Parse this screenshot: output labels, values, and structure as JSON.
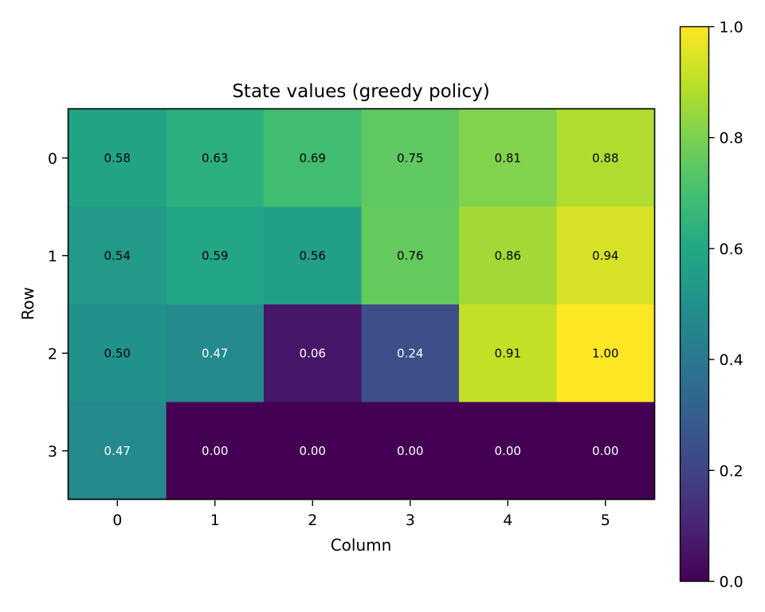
{
  "chart_data": {
    "type": "heatmap",
    "title": "State values (greedy policy)",
    "xlabel": "Column",
    "ylabel": "Row",
    "x_ticks": [
      "0",
      "1",
      "2",
      "3",
      "4",
      "5"
    ],
    "y_ticks": [
      "0",
      "1",
      "2",
      "3"
    ],
    "values": [
      [
        0.58,
        0.63,
        0.69,
        0.75,
        0.81,
        0.88
      ],
      [
        0.54,
        0.59,
        0.56,
        0.76,
        0.86,
        0.94
      ],
      [
        0.5,
        0.47,
        0.06,
        0.24,
        0.91,
        1.0
      ],
      [
        0.47,
        0.0,
        0.0,
        0.0,
        0.0,
        0.0
      ]
    ],
    "value_labels": [
      [
        "0.58",
        "0.63",
        "0.69",
        "0.75",
        "0.81",
        "0.88"
      ],
      [
        "0.54",
        "0.59",
        "0.56",
        "0.76",
        "0.86",
        "0.94"
      ],
      [
        "0.50",
        "0.47",
        "0.06",
        "0.24",
        "0.91",
        "1.00"
      ],
      [
        "0.47",
        "0.00",
        "0.00",
        "0.00",
        "0.00",
        "0.00"
      ]
    ],
    "colormap": "viridis",
    "colorbar": {
      "range": [
        0.0,
        1.0
      ],
      "ticks": [
        0.0,
        0.2,
        0.4,
        0.6,
        0.8,
        1.0
      ],
      "tick_labels": [
        "0.0",
        "0.2",
        "0.4",
        "0.6",
        "0.8",
        "1.0"
      ]
    },
    "text_colors": {
      "light": "#ffffff",
      "dark": "#000000"
    },
    "grid": false
  }
}
